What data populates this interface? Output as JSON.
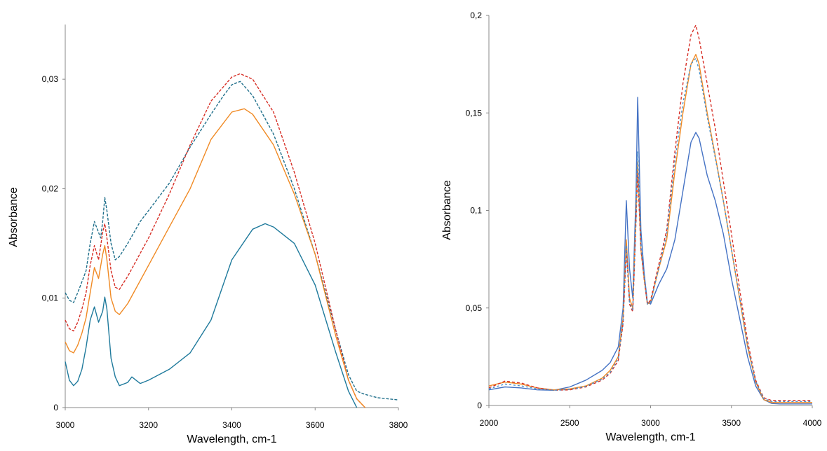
{
  "chart_data": [
    {
      "type": "line",
      "xlabel": "Wavelength, cm-1",
      "ylabel": "Absorbance",
      "xlim": [
        3000,
        3800
      ],
      "ylim": [
        0,
        0.035
      ],
      "x_ticks": [
        {
          "value": 3000,
          "label": "3000"
        },
        {
          "value": 3200,
          "label": "3200"
        },
        {
          "value": 3400,
          "label": "3400"
        },
        {
          "value": 3600,
          "label": "3600"
        },
        {
          "value": 3800,
          "label": "3800"
        }
      ],
      "y_ticks": [
        {
          "value": 0,
          "label": "0"
        },
        {
          "value": 0.01,
          "label": "0,01"
        },
        {
          "value": 0.02,
          "label": "0,02"
        },
        {
          "value": 0.03,
          "label": "0,03"
        }
      ],
      "grid": false,
      "series": [
        {
          "color": "#1f6f8b",
          "dash": "4,2",
          "x": [
            3000,
            3010,
            3020,
            3030,
            3040,
            3050,
            3060,
            3070,
            3080,
            3085,
            3090,
            3095,
            3100,
            3110,
            3120,
            3130,
            3150,
            3180,
            3200,
            3250,
            3300,
            3350,
            3380,
            3400,
            3420,
            3450,
            3500,
            3550,
            3600,
            3650,
            3680,
            3700,
            3720,
            3750,
            3800
          ],
          "y": [
            0.0105,
            0.0098,
            0.0096,
            0.0105,
            0.0115,
            0.0125,
            0.015,
            0.017,
            0.016,
            0.0155,
            0.017,
            0.0192,
            0.018,
            0.015,
            0.0135,
            0.0138,
            0.015,
            0.017,
            0.018,
            0.0205,
            0.0238,
            0.0268,
            0.0285,
            0.0295,
            0.0298,
            0.0285,
            0.025,
            0.02,
            0.014,
            0.007,
            0.003,
            0.0015,
            0.0012,
            0.0009,
            0.0007
          ]
        },
        {
          "color": "#d73027",
          "dash": "4,2",
          "x": [
            3000,
            3010,
            3020,
            3030,
            3040,
            3050,
            3060,
            3070,
            3080,
            3090,
            3095,
            3100,
            3110,
            3120,
            3130,
            3150,
            3200,
            3250,
            3300,
            3350,
            3400,
            3420,
            3450,
            3500,
            3550,
            3600,
            3650,
            3680,
            3700,
            3720
          ],
          "y": [
            0.008,
            0.0072,
            0.007,
            0.0078,
            0.009,
            0.0105,
            0.013,
            0.0148,
            0.0135,
            0.016,
            0.0168,
            0.0155,
            0.0125,
            0.011,
            0.0108,
            0.012,
            0.0155,
            0.0195,
            0.024,
            0.028,
            0.0302,
            0.0305,
            0.03,
            0.027,
            0.0215,
            0.015,
            0.007,
            0.0025,
            0.0008,
            0.0
          ]
        },
        {
          "color": "#f08a24",
          "dash": "",
          "x": [
            3000,
            3010,
            3020,
            3030,
            3040,
            3050,
            3060,
            3070,
            3080,
            3090,
            3095,
            3100,
            3110,
            3120,
            3130,
            3150,
            3200,
            3250,
            3300,
            3350,
            3400,
            3430,
            3450,
            3500,
            3550,
            3600,
            3650,
            3680,
            3700,
            3720
          ],
          "y": [
            0.006,
            0.0052,
            0.005,
            0.0057,
            0.0068,
            0.0082,
            0.0105,
            0.0128,
            0.0118,
            0.014,
            0.0148,
            0.0135,
            0.01,
            0.0088,
            0.0085,
            0.0095,
            0.013,
            0.0165,
            0.02,
            0.0245,
            0.027,
            0.0273,
            0.0268,
            0.024,
            0.0195,
            0.014,
            0.0065,
            0.0025,
            0.0008,
            0.0
          ]
        },
        {
          "color": "#1f7a9c",
          "dash": "",
          "x": [
            3000,
            3010,
            3020,
            3030,
            3040,
            3050,
            3060,
            3070,
            3080,
            3090,
            3095,
            3100,
            3110,
            3120,
            3130,
            3150,
            3160,
            3170,
            3180,
            3200,
            3250,
            3300,
            3350,
            3400,
            3450,
            3480,
            3500,
            3550,
            3600,
            3650,
            3680,
            3700
          ],
          "y": [
            0.0042,
            0.0025,
            0.002,
            0.0024,
            0.0035,
            0.0055,
            0.008,
            0.0092,
            0.0078,
            0.0088,
            0.0101,
            0.009,
            0.0045,
            0.0028,
            0.002,
            0.0023,
            0.0028,
            0.0025,
            0.0022,
            0.0025,
            0.0035,
            0.005,
            0.008,
            0.0135,
            0.0163,
            0.0168,
            0.0165,
            0.015,
            0.0112,
            0.005,
            0.0015,
            0.0
          ]
        }
      ]
    },
    {
      "type": "line",
      "xlabel": "Wavelength, cm-1",
      "ylabel": "Absorbance",
      "xlim": [
        2000,
        4000
      ],
      "ylim": [
        0,
        0.2
      ],
      "x_ticks": [
        {
          "value": 2000,
          "label": "2000"
        },
        {
          "value": 2500,
          "label": "2500"
        },
        {
          "value": 3000,
          "label": "3000"
        },
        {
          "value": 3500,
          "label": "3500"
        },
        {
          "value": 4000,
          "label": "4000"
        }
      ],
      "y_ticks": [
        {
          "value": 0,
          "label": "0"
        },
        {
          "value": 0.05,
          "label": "0,05"
        },
        {
          "value": 0.1,
          "label": "0,1"
        },
        {
          "value": 0.15,
          "label": "0,15"
        },
        {
          "value": 0.2,
          "label": "0,2"
        }
      ],
      "grid": false,
      "series": [
        {
          "color": "#4472c4",
          "dash": "",
          "x": [
            2000,
            2100,
            2200,
            2300,
            2400,
            2500,
            2600,
            2700,
            2750,
            2800,
            2830,
            2850,
            2870,
            2890,
            2910,
            2920,
            2940,
            2960,
            2980,
            3000,
            3050,
            3100,
            3150,
            3200,
            3250,
            3280,
            3300,
            3350,
            3400,
            3450,
            3500,
            3550,
            3600,
            3650,
            3700,
            3750,
            3800,
            4000
          ],
          "y": [
            0.008,
            0.0095,
            0.009,
            0.008,
            0.0078,
            0.0095,
            0.013,
            0.018,
            0.022,
            0.03,
            0.05,
            0.105,
            0.07,
            0.055,
            0.11,
            0.158,
            0.09,
            0.068,
            0.053,
            0.052,
            0.062,
            0.07,
            0.085,
            0.11,
            0.135,
            0.14,
            0.137,
            0.118,
            0.105,
            0.088,
            0.065,
            0.045,
            0.025,
            0.01,
            0.003,
            0.001,
            0.0008,
            0.0008
          ]
        },
        {
          "color": "#f08a24",
          "dash": "",
          "x": [
            2000,
            2100,
            2200,
            2300,
            2400,
            2500,
            2600,
            2700,
            2750,
            2800,
            2830,
            2850,
            2870,
            2890,
            2910,
            2920,
            2940,
            2960,
            2980,
            3000,
            3050,
            3100,
            3150,
            3200,
            3250,
            3280,
            3300,
            3350,
            3400,
            3450,
            3500,
            3550,
            3600,
            3650,
            3700,
            3750,
            3800,
            4000
          ],
          "y": [
            0.01,
            0.012,
            0.011,
            0.009,
            0.008,
            0.0085,
            0.01,
            0.014,
            0.018,
            0.025,
            0.045,
            0.085,
            0.055,
            0.05,
            0.1,
            0.125,
            0.08,
            0.065,
            0.052,
            0.053,
            0.07,
            0.085,
            0.12,
            0.15,
            0.175,
            0.18,
            0.175,
            0.15,
            0.128,
            0.105,
            0.08,
            0.055,
            0.03,
            0.012,
            0.003,
            0.0015,
            0.0015,
            0.0015
          ]
        },
        {
          "color": "#d73027",
          "dash": "4,3",
          "x": [
            2000,
            2100,
            2200,
            2300,
            2400,
            2500,
            2600,
            2700,
            2750,
            2800,
            2830,
            2850,
            2870,
            2890,
            2910,
            2920,
            2940,
            2960,
            2980,
            3000,
            3050,
            3100,
            3150,
            3200,
            3250,
            3280,
            3300,
            3350,
            3400,
            3450,
            3500,
            3550,
            3600,
            3650,
            3700,
            3750,
            3800,
            4000
          ],
          "y": [
            0.009,
            0.0125,
            0.0115,
            0.009,
            0.0078,
            0.008,
            0.0095,
            0.013,
            0.0165,
            0.023,
            0.042,
            0.08,
            0.052,
            0.048,
            0.095,
            0.12,
            0.08,
            0.065,
            0.052,
            0.054,
            0.072,
            0.09,
            0.13,
            0.165,
            0.19,
            0.195,
            0.188,
            0.165,
            0.142,
            0.115,
            0.088,
            0.06,
            0.033,
            0.013,
            0.004,
            0.0025,
            0.0025,
            0.0025
          ]
        },
        {
          "color": "#4a90c8",
          "dash": "3,3",
          "x": [
            2000,
            2100,
            2200,
            2300,
            2400,
            2500,
            2600,
            2700,
            2750,
            2800,
            2830,
            2850,
            2870,
            2890,
            2910,
            2920,
            2940,
            2960,
            2980,
            3000,
            3050,
            3100,
            3150,
            3200,
            3250,
            3280,
            3300,
            3350,
            3400,
            3450,
            3500,
            3550,
            3600,
            3650,
            3700,
            3750,
            3800,
            4000
          ],
          "y": [
            0.0085,
            0.011,
            0.01,
            0.0085,
            0.0078,
            0.0082,
            0.0098,
            0.0135,
            0.017,
            0.024,
            0.043,
            0.082,
            0.053,
            0.049,
            0.097,
            0.13,
            0.082,
            0.066,
            0.052,
            0.053,
            0.07,
            0.088,
            0.125,
            0.155,
            0.175,
            0.178,
            0.172,
            0.148,
            0.127,
            0.105,
            0.08,
            0.056,
            0.031,
            0.0125,
            0.0035,
            0.002,
            0.002,
            0.002
          ]
        }
      ]
    }
  ]
}
